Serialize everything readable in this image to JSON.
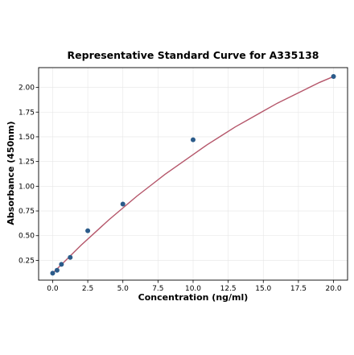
{
  "chart_data": {
    "type": "scatter",
    "title": "Representative Standard Curve for A335138",
    "xlabel": "Concentration (ng/ml)",
    "ylabel": "Absorbance (450nm)",
    "xlim": [
      -1.0,
      21.0
    ],
    "ylim": [
      0.05,
      2.2
    ],
    "x_ticks": [
      0.0,
      2.5,
      5.0,
      7.5,
      10.0,
      12.5,
      15.0,
      17.5,
      20.0
    ],
    "x_tick_labels": [
      "0.0",
      "2.5",
      "5.0",
      "7.5",
      "10.0",
      "12.5",
      "15.0",
      "17.5",
      "20.0"
    ],
    "y_ticks": [
      0.25,
      0.5,
      0.75,
      1.0,
      1.25,
      1.5,
      1.75,
      2.0
    ],
    "y_tick_labels": [
      "0.25",
      "0.50",
      "0.75",
      "1.00",
      "1.25",
      "1.50",
      "1.75",
      "2.00"
    ],
    "grid": true,
    "series": [
      {
        "kind": "points",
        "x": [
          0.0,
          0.313,
          0.625,
          1.25,
          2.5,
          5.0,
          10.0,
          20.0
        ],
        "y": [
          0.12,
          0.15,
          0.21,
          0.28,
          0.55,
          0.82,
          1.47,
          2.11
        ],
        "color": "#2b5b8a"
      },
      {
        "kind": "fit-curve",
        "x": [
          0.0,
          1.0,
          2.0,
          3.0,
          4.0,
          5.0,
          6.0,
          7.0,
          8.0,
          9.0,
          10.0,
          11.0,
          12.0,
          13.0,
          14.0,
          15.0,
          16.0,
          17.0,
          18.0,
          19.0,
          20.0
        ],
        "y": [
          0.12,
          0.26,
          0.4,
          0.53,
          0.66,
          0.78,
          0.9,
          1.01,
          1.12,
          1.22,
          1.32,
          1.42,
          1.51,
          1.6,
          1.68,
          1.76,
          1.84,
          1.91,
          1.98,
          2.05,
          2.11
        ],
        "color": "#b5566a"
      }
    ]
  }
}
